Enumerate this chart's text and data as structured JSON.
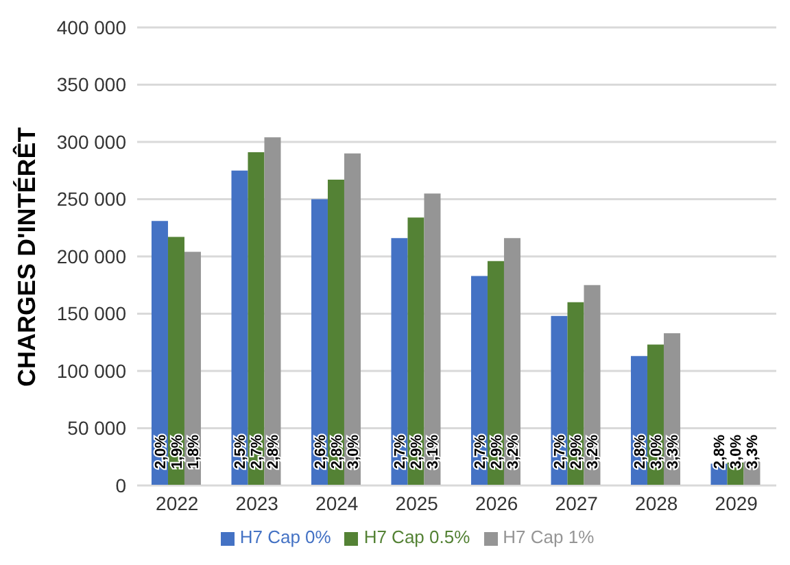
{
  "chart_data": {
    "type": "bar",
    "ylabel": "CHARGES D'INTÉRÊT",
    "categories": [
      "2022",
      "2023",
      "2024",
      "2025",
      "2026",
      "2027",
      "2028",
      "2029"
    ],
    "series": [
      {
        "name": "H7 Cap 0%",
        "color": "#4472c4",
        "values": [
          231000,
          275000,
          250000,
          216000,
          183000,
          148000,
          113000,
          19000
        ]
      },
      {
        "name": "H7 Cap 0.5%",
        "color": "#548235",
        "values": [
          217000,
          291000,
          267000,
          234000,
          196000,
          160000,
          123000,
          20000
        ]
      },
      {
        "name": "H7 Cap 1%",
        "color": "#959595",
        "values": [
          204000,
          304000,
          290000,
          255000,
          216000,
          175000,
          133000,
          21000
        ]
      }
    ],
    "annotations": [
      "2,0%",
      "1,9%",
      "1,8%",
      "2,5%",
      "2,7%",
      "2,8%",
      "2,6%",
      "2,8%",
      "3,0%",
      "2,7%",
      "2,9%",
      "3,1%",
      "2,7%",
      "2,9%",
      "3,2%",
      "2,7%",
      "2,9%",
      "3,2%",
      "2,8%",
      "3,0%",
      "3,3%",
      "2,8%",
      "3,0%",
      "3,3%"
    ],
    "ylim": [
      0,
      400000
    ],
    "yticks": [
      {
        "value": 0,
        "label": "0"
      },
      {
        "value": 50000,
        "label": "50 000"
      },
      {
        "value": 100000,
        "label": "100 000"
      },
      {
        "value": 150000,
        "label": "150 000"
      },
      {
        "value": 200000,
        "label": "200 000"
      },
      {
        "value": 250000,
        "label": "250 000"
      },
      {
        "value": 300000,
        "label": "300 000"
      },
      {
        "value": 350000,
        "label": "350 000"
      },
      {
        "value": 400000,
        "label": "400 000"
      }
    ],
    "grid": "y",
    "legend": "bottom"
  }
}
